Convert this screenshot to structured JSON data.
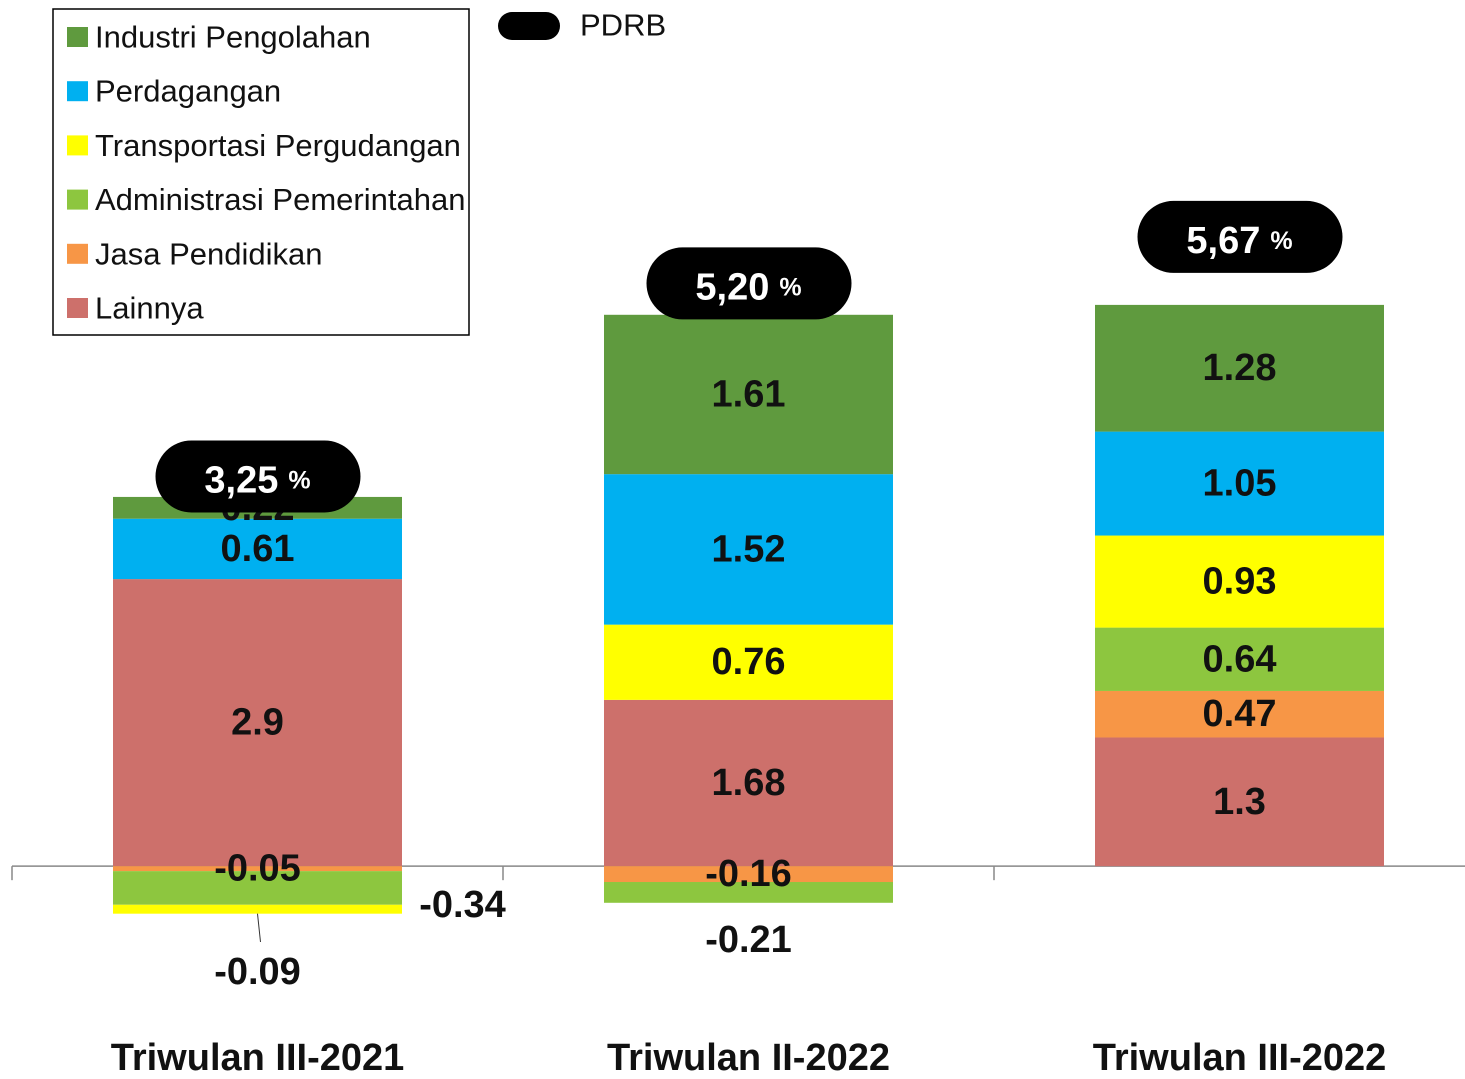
{
  "chart_data": {
    "type": "stacked_bar",
    "categories": [
      "Triwulan III-2021",
      "Triwulan II-2022",
      "Triwulan III-2022"
    ],
    "series": [
      {
        "name": "Industri Pengolahan",
        "color": "#5f9a3e",
        "values": [
          0.22,
          1.61,
          1.28
        ]
      },
      {
        "name": "Perdagangan",
        "color": "#00b0f0",
        "values": [
          0.61,
          1.52,
          1.05
        ]
      },
      {
        "name": "Transportasi Pergudangan",
        "color": "#ffff00",
        "values": [
          -0.09,
          0.76,
          0.93
        ]
      },
      {
        "name": "Administrasi Pemerintahan",
        "color": "#8dc63f",
        "values": [
          -0.34,
          -0.21,
          0.64
        ]
      },
      {
        "name": "Jasa Pendidikan",
        "color": "#f79646",
        "values": [
          -0.05,
          -0.16,
          0.47
        ]
      },
      {
        "name": "Lainnya",
        "color": "#cd706b",
        "values": [
          2.9,
          1.68,
          1.3
        ]
      }
    ],
    "total": {
      "name": "PDRB",
      "color": "#000000",
      "values": [
        3.25,
        5.2,
        5.67
      ],
      "value_labels": [
        "3,25",
        "5,20",
        "5,67"
      ],
      "unit": "%"
    },
    "ylim": [
      -2.15,
      8.75
    ]
  }
}
